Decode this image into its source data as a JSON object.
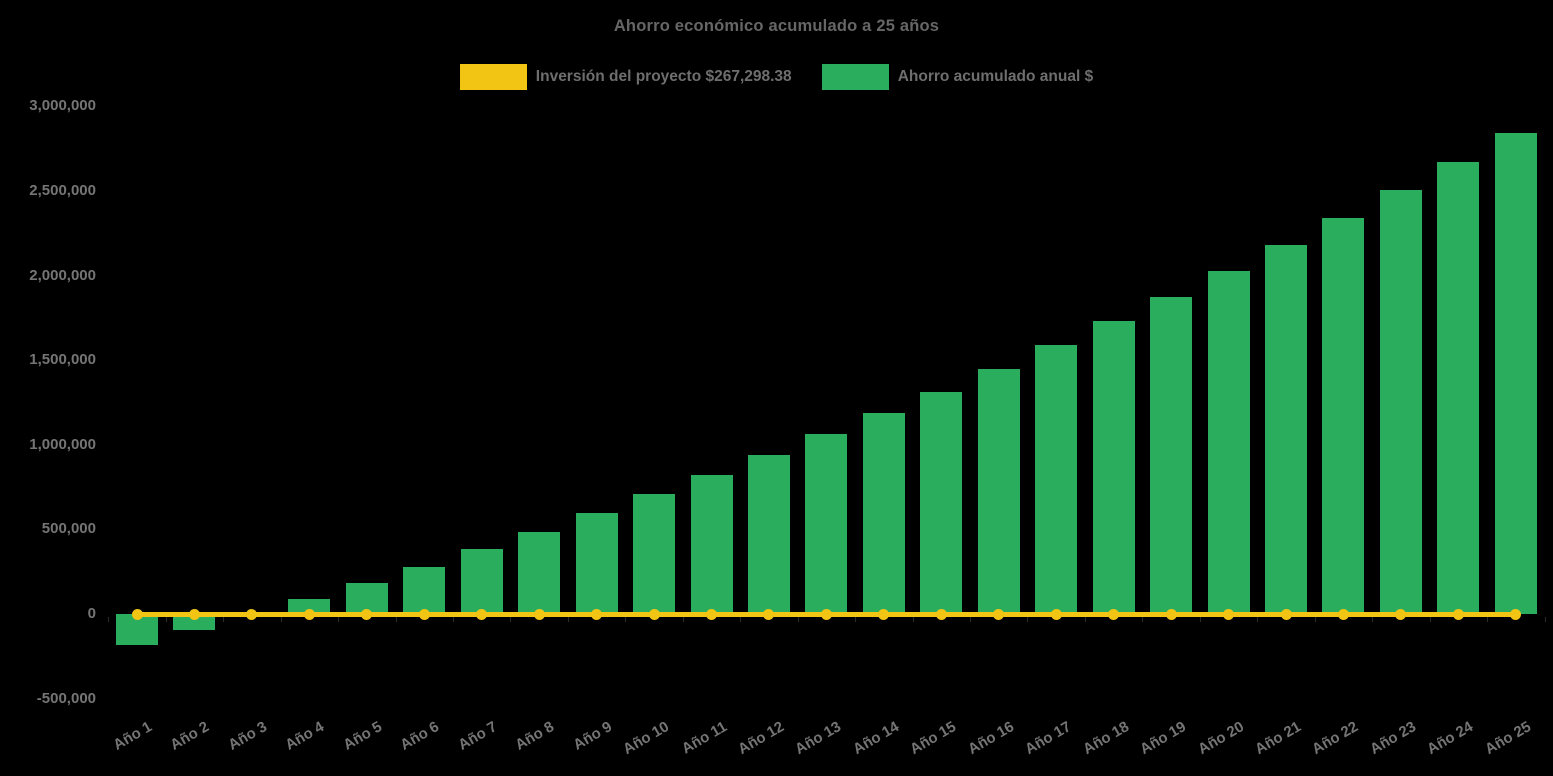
{
  "background": "#000000",
  "chart_data": {
    "type": "bar",
    "title": "Ahorro económico acumulado a 25 años",
    "xlabel": "",
    "ylabel": "",
    "ylim": [
      -500000,
      3000000
    ],
    "grid": false,
    "legend_position": "top-center",
    "categories": [
      "Año 1",
      "Año 2",
      "Año 3",
      "Año 4",
      "Año 5",
      "Año 6",
      "Año 7",
      "Año 8",
      "Año 9",
      "Año 10",
      "Año 11",
      "Año 12",
      "Año 13",
      "Año 14",
      "Año 15",
      "Año 16",
      "Año 17",
      "Año 18",
      "Año 19",
      "Año 20",
      "Año 21",
      "Año 22",
      "Año 23",
      "Año 24",
      "Año 25"
    ],
    "series": [
      {
        "name": "Inversión del proyecto $267,298.38",
        "type": "line",
        "color": "#F2C413",
        "values": [
          0,
          0,
          0,
          0,
          0,
          0,
          0,
          0,
          0,
          0,
          0,
          0,
          0,
          0,
          0,
          0,
          0,
          0,
          0,
          0,
          0,
          0,
          0,
          0,
          0
        ]
      },
      {
        "name": "Ahorro acumulado anual $",
        "type": "bar",
        "color": "#2BAD5E",
        "values": [
          -185000,
          -97000,
          -5000,
          88000,
          185000,
          280000,
          384000,
          487000,
          598000,
          710000,
          824000,
          941000,
          1062000,
          1186000,
          1315000,
          1450000,
          1587000,
          1730000,
          1876000,
          2026000,
          2180000,
          2339000,
          2503000,
          2671000,
          2845000
        ]
      }
    ],
    "yticks": {
      "labels": [
        "3,000,000",
        "2,500,000",
        "2,000,000",
        "1,500,000",
        "1,000,000",
        "500,000",
        "0",
        "-500,000"
      ],
      "values": [
        3000000,
        2500000,
        2000000,
        1500000,
        1000000,
        500000,
        0,
        -500000
      ]
    },
    "text_color": "#757575",
    "title_color": "#666666"
  }
}
